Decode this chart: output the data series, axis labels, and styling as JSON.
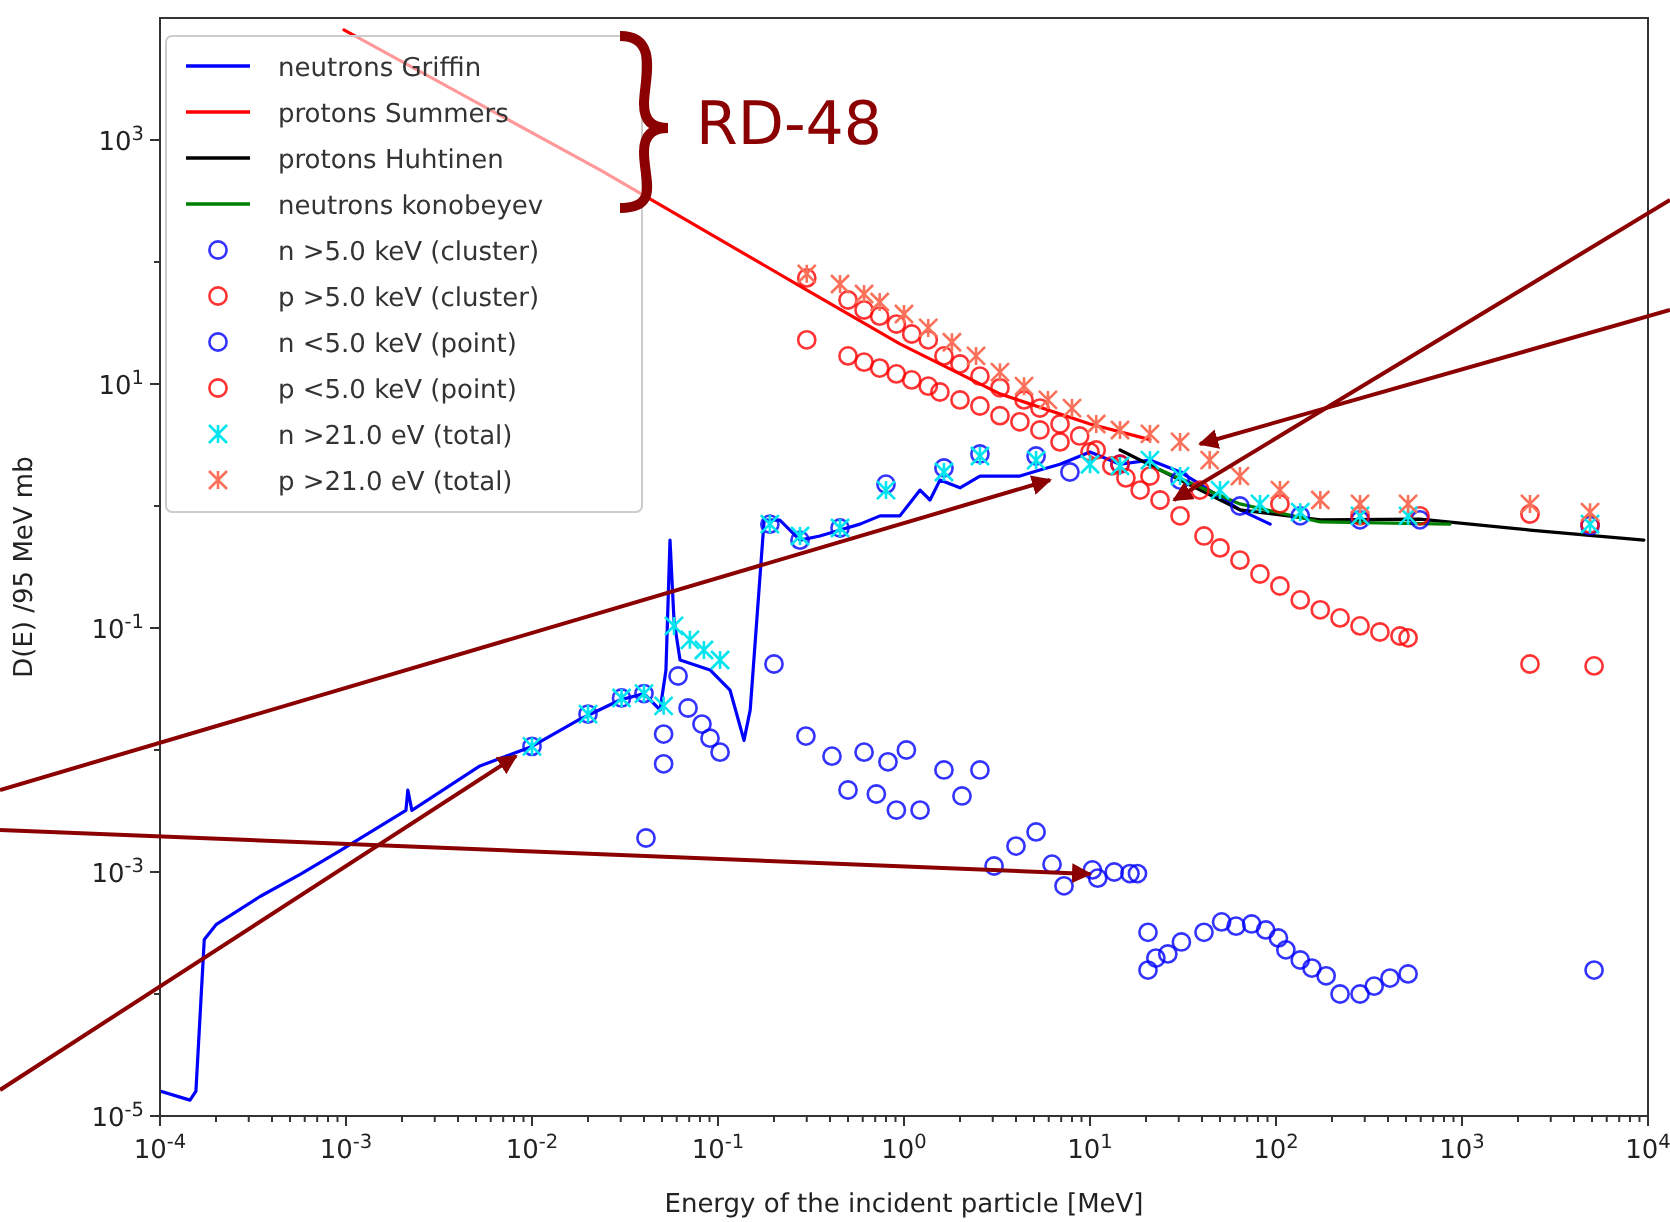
{
  "chart_data": {
    "type": "scatter",
    "xlabel": "Energy of the incident particle [MeV]",
    "ylabel": "D(E) /95 MeV mb",
    "log": "xy",
    "grid": false,
    "legend": "top left",
    "annotations": [
      "RD-48"
    ],
    "xlim": [
      0.0001,
      10000
    ],
    "ylim": [
      1e-05,
      10000
    ],
    "xticks": [
      {
        "value": 0.0001,
        "label": "10$^{-4}$"
      },
      {
        "value": 0.0002,
        "label": null
      },
      {
        "value": 0.0003,
        "label": null
      },
      {
        "value": 0.0004,
        "label": null
      },
      {
        "value": 0.0005,
        "label": null
      },
      {
        "value": 0.0006,
        "label": null
      },
      {
        "value": 0.0007,
        "label": null
      },
      {
        "value": 0.0008,
        "label": null
      },
      {
        "value": 0.0009,
        "label": null
      },
      {
        "value": 0.001,
        "label": "10$^{-3}$"
      },
      {
        "value": 0.002,
        "label": null
      },
      {
        "value": 0.003,
        "label": null
      },
      {
        "value": 0.004,
        "label": null
      },
      {
        "value": 0.005,
        "label": null
      },
      {
        "value": 0.006,
        "label": null
      },
      {
        "value": 0.007,
        "label": null
      },
      {
        "value": 0.008,
        "label": null
      },
      {
        "value": 0.009,
        "label": null
      },
      {
        "value": 0.01,
        "label": "10$^{-2}$"
      },
      {
        "value": 0.02,
        "label": null
      },
      {
        "value": 0.03,
        "label": null
      },
      {
        "value": 0.04,
        "label": null
      },
      {
        "value": 0.05,
        "label": null
      },
      {
        "value": 0.06,
        "label": null
      },
      {
        "value": 0.07,
        "label": null
      },
      {
        "value": 0.08,
        "label": null
      },
      {
        "value": 0.09,
        "label": null
      },
      {
        "value": 0.1,
        "label": "10$^{-1}$"
      },
      {
        "value": 0.2,
        "label": null
      },
      {
        "value": 0.3,
        "label": null
      },
      {
        "value": 0.4,
        "label": null
      },
      {
        "value": 0.5,
        "label": null
      },
      {
        "value": 0.6,
        "label": null
      },
      {
        "value": 0.7,
        "label": null
      },
      {
        "value": 0.8,
        "label": null
      },
      {
        "value": 0.9,
        "label": null
      },
      {
        "value": 1,
        "label": "10$^{0}$"
      },
      {
        "value": 2,
        "label": null
      },
      {
        "value": 3,
        "label": null
      },
      {
        "value": 4,
        "label": null
      },
      {
        "value": 5,
        "label": null
      },
      {
        "value": 6,
        "label": null
      },
      {
        "value": 7,
        "label": null
      },
      {
        "value": 8,
        "label": null
      },
      {
        "value": 9,
        "label": null
      },
      {
        "value": 10,
        "label": "10$^{1}$"
      },
      {
        "value": 20,
        "label": null
      },
      {
        "value": 30,
        "label": null
      },
      {
        "value": 40,
        "label": null
      },
      {
        "value": 50,
        "label": null
      },
      {
        "value": 60,
        "label": null
      },
      {
        "value": 70,
        "label": null
      },
      {
        "value": 80,
        "label": null
      },
      {
        "value": 90,
        "label": null
      },
      {
        "value": 100,
        "label": "10$^{2}$"
      },
      {
        "value": 200,
        "label": null
      },
      {
        "value": 300,
        "label": null
      },
      {
        "value": 400,
        "label": null
      },
      {
        "value": 500,
        "label": null
      },
      {
        "value": 600,
        "label": null
      },
      {
        "value": 700,
        "label": null
      },
      {
        "value": 800,
        "label": null
      },
      {
        "value": 900,
        "label": null
      },
      {
        "value": 1000,
        "label": "10$^{3}$"
      },
      {
        "value": 2000,
        "label": null
      },
      {
        "value": 3000,
        "label": null
      },
      {
        "value": 4000,
        "label": null
      },
      {
        "value": 5000,
        "label": null
      },
      {
        "value": 6000,
        "label": null
      },
      {
        "value": 7000,
        "label": null
      },
      {
        "value": 8000,
        "label": null
      },
      {
        "value": 9000,
        "label": null
      },
      {
        "value": 10000,
        "label": "10$^{4}$"
      }
    ],
    "yticks": [
      {
        "value": 1e-05,
        "label": "10$^{-5}$"
      },
      {
        "value": 0.0001,
        "label": null
      },
      {
        "value": 0.001,
        "label": "10$^{-3}$"
      },
      {
        "value": 0.01,
        "label": null
      },
      {
        "value": 0.1,
        "label": "10$^{-1}$"
      },
      {
        "value": 1,
        "label": null
      },
      {
        "value": 10,
        "label": "10$^{1}$"
      },
      {
        "value": 100,
        "label": null
      },
      {
        "value": 1000,
        "label": "10$^{3}$"
      }
    ],
    "series": [
      {
        "name": "neutrons Griffin",
        "type": "line",
        "color": "#0000ff",
        "x": [
          0.0001,
          0.000145,
          0.000156,
          0.000173,
          0.0002,
          0.000345,
          0.00057,
          0.00093,
          0.0021,
          0.00215,
          0.00226,
          0.00525,
          0.01,
          0.018,
          0.0297,
          0.04,
          0.0488,
          0.0525,
          0.0552,
          0.058,
          0.0625,
          0.0906,
          0.116,
          0.138,
          0.149,
          0.177,
          0.215,
          0.276,
          0.353,
          0.453,
          0.58,
          0.743,
          0.95,
          1.22,
          1.38,
          1.56,
          2.0,
          2.56,
          3.28,
          4.2,
          5.38,
          6.9,
          10,
          14.5,
          21,
          30.5,
          39,
          64,
          93
        ],
        "values": [
          1.6e-05,
          1.35e-05,
          1.6e-05,
          0.00028,
          0.00037,
          0.00063,
          0.00096,
          0.0015,
          0.0032,
          0.0047,
          0.0032,
          0.0074,
          0.0107,
          0.0178,
          0.0257,
          0.029,
          0.0213,
          0.0453,
          0.525,
          0.116,
          0.0547,
          0.0453,
          0.031,
          0.012,
          0.0213,
          0.767,
          0.767,
          0.525,
          0.568,
          0.635,
          0.71,
          0.83,
          0.83,
          1.35,
          1.12,
          1.63,
          1.41,
          1.76,
          1.76,
          1.76,
          1.97,
          2.2,
          2.77,
          2.2,
          2.38,
          1.9,
          1.51,
          0.93,
          0.71
        ]
      },
      {
        "name": "protons Summers",
        "type": "line",
        "color": "#ff0000",
        "x": [
          0.000975,
          0.0232,
          0.276,
          0.95,
          3.28,
          10,
          21
        ],
        "values": [
          8000,
          568,
          63.5,
          21.3,
          8.3,
          4.7,
          3.5
        ]
      },
      {
        "name": "protons Huhtinen",
        "type": "line",
        "color": "#000000",
        "x": [
          14.5,
          64,
          173,
          594,
          2320,
          9500
        ],
        "values": [
          2.88,
          0.93,
          0.77,
          0.78,
          0.635,
          0.525
        ]
      },
      {
        "name": "neutrons konobeyev",
        "type": "line",
        "color": "#008000",
        "x": [
          23.8,
          64,
          173,
          861
        ],
        "values": [
          1.97,
          1.04,
          0.74,
          0.71
        ]
      },
      {
        "name": "n >5.0 keV (cluster)",
        "marker": "circle",
        "color": "#0000ff",
        "x": [
          0.041,
          0.051,
          0.19,
          0.276,
          0.453,
          0.8,
          1.64,
          2.56,
          5.13,
          7.8,
          14.5,
          30.5,
          64,
          135,
          283,
          594,
          4880
        ],
        "values": [
          0.0019,
          0.0077,
          0.71,
          0.525,
          0.66,
          1.51,
          2.05,
          2.67,
          2.57,
          1.9,
          2.2,
          1.63,
          1.0,
          0.83,
          0.77,
          0.77,
          0.69
        ]
      },
      {
        "name": "p >5.0 keV (cluster)",
        "marker": "circle",
        "color": "#ff0000",
        "x": [
          0.3,
          0.5,
          0.61,
          0.74,
          0.91,
          1.1,
          1.35,
          1.56,
          2.0,
          2.56,
          3.28,
          4.2,
          5.38,
          6.9,
          10,
          14.5,
          21,
          39,
          105,
          283,
          594,
          2320,
          4880
        ],
        "values": [
          23,
          17,
          15.1,
          13.5,
          12.1,
          10.8,
          9.6,
          8.6,
          7.4,
          6.6,
          5.5,
          4.9,
          4.2,
          3.35,
          2.77,
          2.2,
          1.76,
          1.35,
          1.04,
          0.83,
          0.83,
          0.86,
          0.71
        ]
      },
      {
        "name": "n <5.0 keV (point)",
        "marker": "circle",
        "color": "#0000ff",
        "x": [
          0.01,
          0.02,
          0.0303,
          0.04,
          0.051,
          0.061,
          0.069,
          0.082,
          0.0906,
          0.1026,
          0.2,
          0.297,
          0.41,
          0.5,
          0.61,
          0.71,
          0.82,
          0.91,
          1.03,
          1.22,
          1.64,
          2.05,
          2.56,
          3.05,
          4.0,
          5.13,
          6.25,
          7.25,
          10.3,
          11,
          13.5,
          16.4,
          18,
          20.5,
          20.5,
          22.6,
          26.2,
          31,
          41,
          51,
          61,
          74,
          88,
          103,
          113,
          135,
          156,
          186,
          221,
          283,
          337,
          410,
          513,
          5130
        ],
        "values": [
          0.0107,
          0.0197,
          0.0267,
          0.029,
          0.0135,
          0.0404,
          0.0221,
          0.0163,
          0.0125,
          0.0096,
          0.0507,
          0.013,
          0.0089,
          0.0047,
          0.0096,
          0.00436,
          0.008,
          0.00322,
          0.01,
          0.00322,
          0.00686,
          0.0042,
          0.00686,
          0.00112,
          0.00163,
          0.00213,
          0.00116,
          0.00077,
          0.00104,
          0.00089,
          0.001,
          0.00097,
          0.00097,
          0.00032,
          0.000157,
          0.000197,
          0.000213,
          0.000267,
          0.00032,
          0.00039,
          0.00036,
          0.000375,
          0.000335,
          0.000288,
          0.00023,
          0.00019,
          0.000163,
          0.000141,
          0.0001,
          0.0001,
          0.000116,
          0.000135,
          0.000146,
          0.000157
        ]
      },
      {
        "name": "p <5.0 keV (point)",
        "marker": "circle",
        "color": "#ff0000",
        "x": [
          0.3,
          0.5,
          0.61,
          0.74,
          0.91,
          1.1,
          1.35,
          1.64,
          2.0,
          2.56,
          3.28,
          4.42,
          5.38,
          6.9,
          8.8,
          10.8,
          13.1,
          15.6,
          18.6,
          23.8,
          30.5,
          41,
          50,
          64,
          82,
          105,
          135,
          173,
          221,
          283,
          362,
          464,
          513,
          2320,
          5130
        ],
        "values": [
          74,
          48.8,
          40.4,
          36,
          31,
          25.7,
          23,
          17,
          14.6,
          11.6,
          9.3,
          7.4,
          6.35,
          4.7,
          3.75,
          2.88,
          2.13,
          1.7,
          1.35,
          1.12,
          0.83,
          0.568,
          0.453,
          0.36,
          0.277,
          0.221,
          0.17,
          0.141,
          0.121,
          0.104,
          0.0927,
          0.086,
          0.083,
          0.0507,
          0.0489
        ]
      },
      {
        "name": "n >21.0 eV (total)",
        "marker": "cross",
        "color": "#00e5ee",
        "x": [
          0.01,
          0.02,
          0.0303,
          0.04,
          0.051,
          0.058,
          0.0706,
          0.084,
          0.1026,
          0.19,
          0.276,
          0.453,
          0.8,
          1.64,
          2.56,
          5.13,
          10,
          14.5,
          21,
          30.5,
          50,
          82,
          135,
          283,
          513,
          4880
        ],
        "values": [
          0.0107,
          0.0197,
          0.0267,
          0.029,
          0.023,
          0.104,
          0.08,
          0.066,
          0.0547,
          0.71,
          0.568,
          0.66,
          1.35,
          1.9,
          2.57,
          2.38,
          2.2,
          2.13,
          2.38,
          1.76,
          1.35,
          1.04,
          0.89,
          0.83,
          0.83,
          0.71
        ]
      },
      {
        "name": "p >21.0 eV (total)",
        "marker": "cross",
        "color": "#fa7058",
        "x": [
          0.3,
          0.453,
          0.61,
          0.74,
          1.0,
          1.35,
          1.81,
          2.44,
          3.28,
          4.42,
          5.94,
          8.0,
          10.8,
          14.5,
          21,
          30.5,
          44,
          64,
          105,
          173,
          283,
          513,
          2320,
          4880
        ],
        "values": [
          80,
          66,
          54.7,
          47,
          37.5,
          28.8,
          22,
          17,
          12.5,
          9.6,
          7.4,
          6.35,
          4.7,
          4.2,
          3.9,
          3.35,
          2.38,
          1.76,
          1.35,
          1.12,
          1.04,
          1.04,
          1.04,
          0.89
        ]
      }
    ]
  }
}
